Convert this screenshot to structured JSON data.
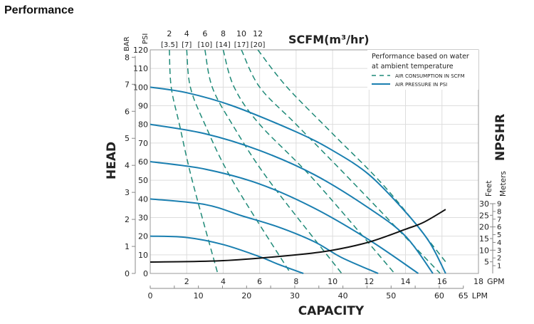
{
  "page_title": "Performance",
  "chart_data": {
    "type": "line",
    "x_axis": {
      "label": "CAPACITY",
      "unit": "GPM",
      "range": [
        0,
        18
      ],
      "ticks": [
        2,
        4,
        6,
        8,
        10,
        12,
        14,
        16,
        18
      ]
    },
    "x_axis_secondary": {
      "unit": "LPM",
      "range": [
        0,
        65
      ],
      "ticks": [
        0,
        10,
        20,
        30,
        40,
        50,
        60,
        65
      ]
    },
    "y_axis": {
      "label": "HEAD",
      "unit": "PSI",
      "range": [
        0,
        120
      ],
      "ticks": [
        0,
        10,
        20,
        30,
        40,
        50,
        60,
        70,
        80,
        90,
        100,
        110,
        120
      ]
    },
    "y_axis_secondary": {
      "unit": "BAR",
      "ticks": [
        0,
        1,
        2,
        3,
        4,
        5,
        6,
        7,
        8
      ]
    },
    "npshr_axis": {
      "label": "NPSHR",
      "feet_label": "Feet",
      "meters_label": "Meters",
      "feet_ticks": [
        5,
        10,
        15,
        20,
        25,
        30
      ],
      "meters_ticks": [
        1,
        2,
        3,
        4,
        5,
        6,
        7,
        8,
        9
      ]
    },
    "top_axis": {
      "label": "SCFM(m³/hr)",
      "scfm": [
        "2",
        "4",
        "6",
        "8",
        "10",
        "12"
      ],
      "m3hr": [
        "[3.5]",
        "[7]",
        "[10]",
        "[14]",
        "[17]",
        "[20]"
      ]
    },
    "grid": true,
    "legend": {
      "placement": "top-right",
      "note_line1": "Performance based on water",
      "note_line2": "at ambient temperature",
      "entries": [
        {
          "label": "AIR CONSUMPTION IN SCFM",
          "style": "dashed"
        },
        {
          "label": "AIR PRESSURE IN PSI",
          "style": "solid"
        }
      ]
    },
    "colors": {
      "pressure": "#1a7fb0",
      "air": "#1f8a78",
      "npshr": "#111111",
      "grid": "#dddddd"
    },
    "pressure_curves": [
      {
        "psi": 100,
        "points": [
          [
            0,
            100
          ],
          [
            2,
            97
          ],
          [
            4.5,
            90
          ],
          [
            8,
            76
          ],
          [
            10,
            66
          ],
          [
            12,
            53
          ],
          [
            14,
            33
          ],
          [
            15.3,
            17
          ],
          [
            16.2,
            0
          ]
        ]
      },
      {
        "psi": 80,
        "points": [
          [
            0,
            80
          ],
          [
            3,
            75
          ],
          [
            6,
            66
          ],
          [
            9,
            53
          ],
          [
            12,
            35
          ],
          [
            14,
            20
          ],
          [
            15.5,
            0
          ]
        ]
      },
      {
        "psi": 60,
        "points": [
          [
            0,
            60
          ],
          [
            3,
            56
          ],
          [
            6,
            48
          ],
          [
            9,
            35
          ],
          [
            12,
            18
          ],
          [
            14.7,
            0
          ]
        ]
      },
      {
        "psi": 40,
        "points": [
          [
            0,
            40
          ],
          [
            3,
            37
          ],
          [
            5,
            31
          ],
          [
            7,
            25
          ],
          [
            9,
            17
          ],
          [
            10.5,
            8.5
          ],
          [
            12.5,
            0
          ]
        ]
      },
      {
        "psi": 20,
        "points": [
          [
            0,
            20
          ],
          [
            2,
            19.3
          ],
          [
            4,
            15.5
          ],
          [
            6,
            9
          ],
          [
            7,
            5
          ],
          [
            8.4,
            0
          ]
        ]
      }
    ],
    "air_curves": [
      {
        "scfm": 2,
        "points": [
          [
            1.05,
            120
          ],
          [
            1.15,
            100
          ],
          [
            1.6,
            80
          ],
          [
            2.3,
            50
          ],
          [
            3.7,
            0
          ]
        ]
      },
      {
        "scfm": 4,
        "points": [
          [
            2,
            120
          ],
          [
            2.2,
            100
          ],
          [
            3,
            80
          ],
          [
            4.5,
            50
          ],
          [
            7.7,
            0
          ]
        ]
      },
      {
        "scfm": 6,
        "points": [
          [
            3,
            120
          ],
          [
            3.4,
            100
          ],
          [
            4.5,
            80
          ],
          [
            6.5,
            50
          ],
          [
            10.5,
            0
          ]
        ]
      },
      {
        "scfm": 8,
        "points": [
          [
            4,
            120
          ],
          [
            4.6,
            100
          ],
          [
            6,
            80
          ],
          [
            9,
            50
          ],
          [
            13.4,
            0
          ]
        ]
      },
      {
        "scfm": 10,
        "points": [
          [
            5,
            120
          ],
          [
            6,
            100
          ],
          [
            8,
            80
          ],
          [
            11,
            50
          ],
          [
            15.9,
            0
          ]
        ]
      },
      {
        "scfm": 12,
        "points": [
          [
            5.9,
            120
          ],
          [
            7.5,
            100
          ],
          [
            10,
            75
          ],
          [
            13,
            45
          ],
          [
            16.3,
            5
          ]
        ]
      }
    ],
    "npshr_curve_feet": [
      [
        0,
        4.9
      ],
      [
        4,
        5.5
      ],
      [
        8,
        8
      ],
      [
        10,
        10
      ],
      [
        12,
        13.5
      ],
      [
        14,
        19
      ],
      [
        15,
        22
      ],
      [
        16.2,
        27.5
      ]
    ]
  }
}
